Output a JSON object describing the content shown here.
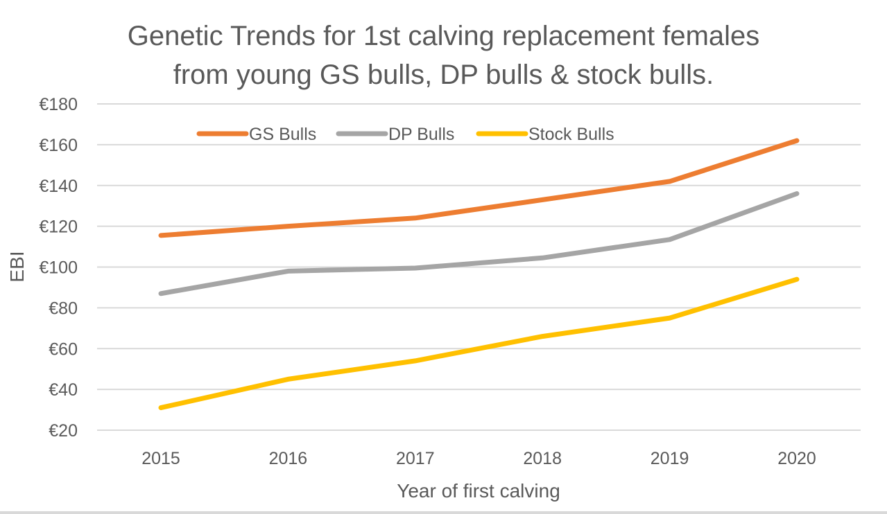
{
  "chart_data": {
    "type": "line",
    "title_lines": [
      "Genetic Trends for 1st calving replacement females",
      "from young GS bulls, DP bulls & stock bulls."
    ],
    "xlabel": "Year of first calving",
    "ylabel": "EBI",
    "categories": [
      "2015",
      "2016",
      "2017",
      "2018",
      "2019",
      "2020"
    ],
    "ylim": [
      20,
      180
    ],
    "yticks": [
      20,
      40,
      60,
      80,
      100,
      120,
      140,
      160,
      180
    ],
    "ytick_labels": [
      "€20",
      "€40",
      "€60",
      "€80",
      "€100",
      "€120",
      "€140",
      "€160",
      "€180"
    ],
    "grid": true,
    "legend_position": "top",
    "series": [
      {
        "name": "GS Bulls",
        "color": "#ED7D31",
        "values": [
          115.5,
          120,
          124,
          133,
          142,
          162
        ]
      },
      {
        "name": "DP Bulls",
        "color": "#A5A5A5",
        "values": [
          87,
          98,
          99.5,
          104.5,
          113.5,
          136
        ]
      },
      {
        "name": "Stock Bulls",
        "color": "#FFC000",
        "values": [
          31,
          45,
          54,
          66,
          75,
          94
        ]
      }
    ]
  }
}
